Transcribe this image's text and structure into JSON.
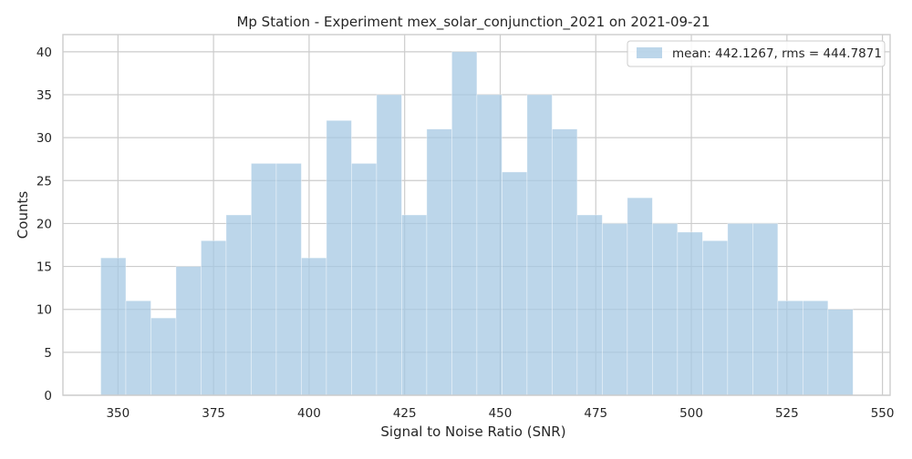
{
  "chart_data": {
    "type": "bar",
    "title": "Mp Station - Experiment mex_solar_conjunction_2021 on 2021-09-21",
    "xlabel": "Signal to Noise Ratio (SNR)",
    "ylabel": "Counts",
    "xlim": [
      335.6,
      552.0
    ],
    "ylim": [
      0,
      42
    ],
    "xticks": [
      350,
      375,
      400,
      425,
      450,
      475,
      500,
      525,
      550
    ],
    "yticks": [
      0,
      5,
      10,
      15,
      20,
      25,
      30,
      35,
      40
    ],
    "grid": true,
    "legend": {
      "position": "top-right",
      "label": "mean: 442.1267, rms = 444.7871"
    },
    "colors": {
      "bar": "#a6c8e3",
      "bar_edge": "#ffffff",
      "grid": "#cccccc",
      "axes": "#cccccc"
    },
    "bin_start": 345.5,
    "bin_width": 6.56,
    "counts": [
      16,
      11,
      9,
      15,
      18,
      21,
      27,
      27,
      16,
      32,
      27,
      35,
      21,
      31,
      40,
      35,
      26,
      35,
      31,
      21,
      20,
      23,
      20,
      19,
      18,
      20,
      20,
      11,
      11,
      10
    ]
  }
}
